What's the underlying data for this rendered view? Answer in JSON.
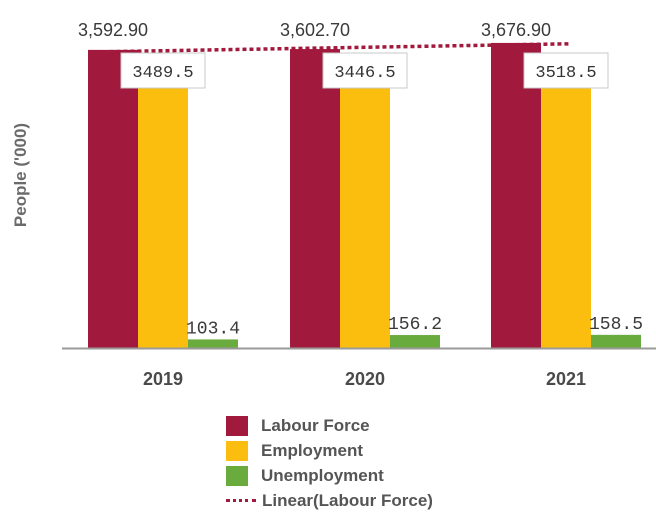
{
  "chart_data": {
    "type": "bar",
    "categories": [
      "2019",
      "2020",
      "2021"
    ],
    "series": [
      {
        "name": "Labour Force",
        "values": [
          3592.9,
          3602.7,
          3676.9
        ],
        "labels": [
          "3,592.90",
          "3,602.70",
          "3,676.90"
        ],
        "color": "#a1193c"
      },
      {
        "name": "Employment",
        "values": [
          3489.5,
          3446.5,
          3518.5
        ],
        "labels": [
          "3489.5",
          "3446.5",
          "3518.5"
        ],
        "color": "#fbbe0f"
      },
      {
        "name": "Unemployment",
        "values": [
          103.4,
          156.2,
          158.5
        ],
        "labels": [
          "103.4",
          "156.2",
          "158.5"
        ],
        "color": "#6aab3e"
      }
    ],
    "trendline": {
      "name": "Linear(Labour Force)",
      "type": "linear",
      "of": "Labour Force",
      "color": "#a1193c",
      "style": "dotted"
    },
    "ylabel": "People ('000)",
    "xlabel": "",
    "ylim": [
      0,
      3700
    ],
    "grid": false,
    "legend_position": "bottom"
  }
}
